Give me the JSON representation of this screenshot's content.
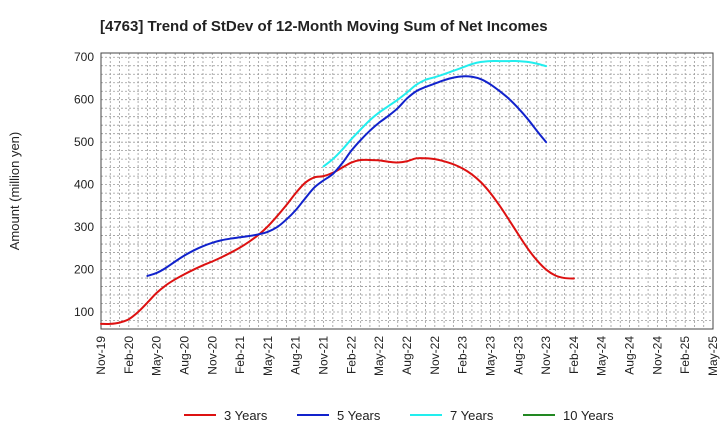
{
  "chart_data": {
    "type": "line",
    "title": "[4763]  Trend of StDev of 12-Month Moving Sum of Net Incomes",
    "ylabel": "Amount (million yen)",
    "xlabel": "",
    "ylim": [
      60,
      710
    ],
    "yticks": [
      100,
      200,
      300,
      400,
      500,
      600,
      700
    ],
    "grid": true,
    "legend_position": "bottom",
    "x_tick_labels": [
      "Nov-19",
      "Feb-20",
      "May-20",
      "Aug-20",
      "Nov-20",
      "Feb-21",
      "May-21",
      "Aug-21",
      "Nov-21",
      "Feb-22",
      "May-22",
      "Aug-22",
      "Nov-22",
      "Feb-23",
      "May-23",
      "Aug-23",
      "Nov-23",
      "Feb-24",
      "May-24",
      "Aug-24",
      "Nov-24",
      "Feb-25",
      "May-25"
    ],
    "x_count": 67,
    "series": [
      {
        "name": "3 Years",
        "color": "#dd1111",
        "start_index": 0,
        "points": [
          [
            0,
            72
          ],
          [
            1,
            72
          ],
          [
            2,
            75
          ],
          [
            3,
            83
          ],
          [
            4,
            100
          ],
          [
            5,
            122
          ],
          [
            6,
            145
          ],
          [
            7,
            163
          ],
          [
            8,
            177
          ],
          [
            9,
            189
          ],
          [
            10,
            200
          ],
          [
            11,
            210
          ],
          [
            12,
            219
          ],
          [
            13,
            229
          ],
          [
            14,
            240
          ],
          [
            15,
            252
          ],
          [
            16,
            266
          ],
          [
            17,
            282
          ],
          [
            18,
            302
          ],
          [
            19,
            326
          ],
          [
            20,
            352
          ],
          [
            21,
            380
          ],
          [
            22,
            404
          ],
          [
            23,
            417
          ],
          [
            24,
            420
          ],
          [
            25,
            428
          ],
          [
            26,
            440
          ],
          [
            27,
            452
          ],
          [
            28,
            458
          ],
          [
            29,
            458
          ],
          [
            30,
            457
          ],
          [
            31,
            454
          ],
          [
            32,
            452
          ],
          [
            33,
            455
          ],
          [
            34,
            462
          ],
          [
            35,
            462
          ],
          [
            36,
            460
          ],
          [
            37,
            455
          ],
          [
            38,
            448
          ],
          [
            39,
            438
          ],
          [
            40,
            424
          ],
          [
            41,
            405
          ],
          [
            42,
            380
          ],
          [
            43,
            350
          ],
          [
            44,
            317
          ],
          [
            45,
            283
          ],
          [
            46,
            250
          ],
          [
            47,
            222
          ],
          [
            48,
            200
          ],
          [
            49,
            186
          ],
          [
            50,
            180
          ],
          [
            51,
            179
          ]
        ]
      },
      {
        "name": "5 Years",
        "color": "#1122cc",
        "start_index": 5,
        "points": [
          [
            5,
            185
          ],
          [
            6,
            192
          ],
          [
            7,
            204
          ],
          [
            8,
            219
          ],
          [
            9,
            233
          ],
          [
            10,
            245
          ],
          [
            11,
            255
          ],
          [
            12,
            263
          ],
          [
            13,
            269
          ],
          [
            14,
            273
          ],
          [
            15,
            276
          ],
          [
            16,
            279
          ],
          [
            17,
            283
          ],
          [
            18,
            289
          ],
          [
            19,
            300
          ],
          [
            20,
            318
          ],
          [
            21,
            340
          ],
          [
            22,
            367
          ],
          [
            23,
            393
          ],
          [
            24,
            410
          ],
          [
            25,
            425
          ],
          [
            26,
            450
          ],
          [
            27,
            480
          ],
          [
            28,
            505
          ],
          [
            29,
            527
          ],
          [
            30,
            546
          ],
          [
            31,
            562
          ],
          [
            32,
            580
          ],
          [
            33,
            603
          ],
          [
            34,
            620
          ],
          [
            35,
            630
          ],
          [
            36,
            638
          ],
          [
            37,
            646
          ],
          [
            38,
            652
          ],
          [
            39,
            655
          ],
          [
            40,
            654
          ],
          [
            41,
            648
          ],
          [
            42,
            636
          ],
          [
            43,
            620
          ],
          [
            44,
            602
          ],
          [
            45,
            580
          ],
          [
            46,
            555
          ],
          [
            47,
            527
          ],
          [
            48,
            500
          ]
        ]
      },
      {
        "name": "7 Years",
        "color": "#22eeee",
        "start_index": 24,
        "points": [
          [
            24,
            443
          ],
          [
            25,
            460
          ],
          [
            26,
            482
          ],
          [
            27,
            507
          ],
          [
            28,
            530
          ],
          [
            29,
            552
          ],
          [
            30,
            570
          ],
          [
            31,
            585
          ],
          [
            32,
            600
          ],
          [
            33,
            617
          ],
          [
            34,
            635
          ],
          [
            35,
            647
          ],
          [
            36,
            653
          ],
          [
            37,
            660
          ],
          [
            38,
            668
          ],
          [
            39,
            676
          ],
          [
            40,
            684
          ],
          [
            41,
            689
          ],
          [
            42,
            691
          ],
          [
            43,
            691
          ],
          [
            44,
            691
          ],
          [
            45,
            691
          ],
          [
            46,
            689
          ],
          [
            47,
            685
          ],
          [
            48,
            679
          ]
        ]
      },
      {
        "name": "10 Years",
        "color": "#228822",
        "start_index": 0,
        "points": []
      }
    ]
  }
}
